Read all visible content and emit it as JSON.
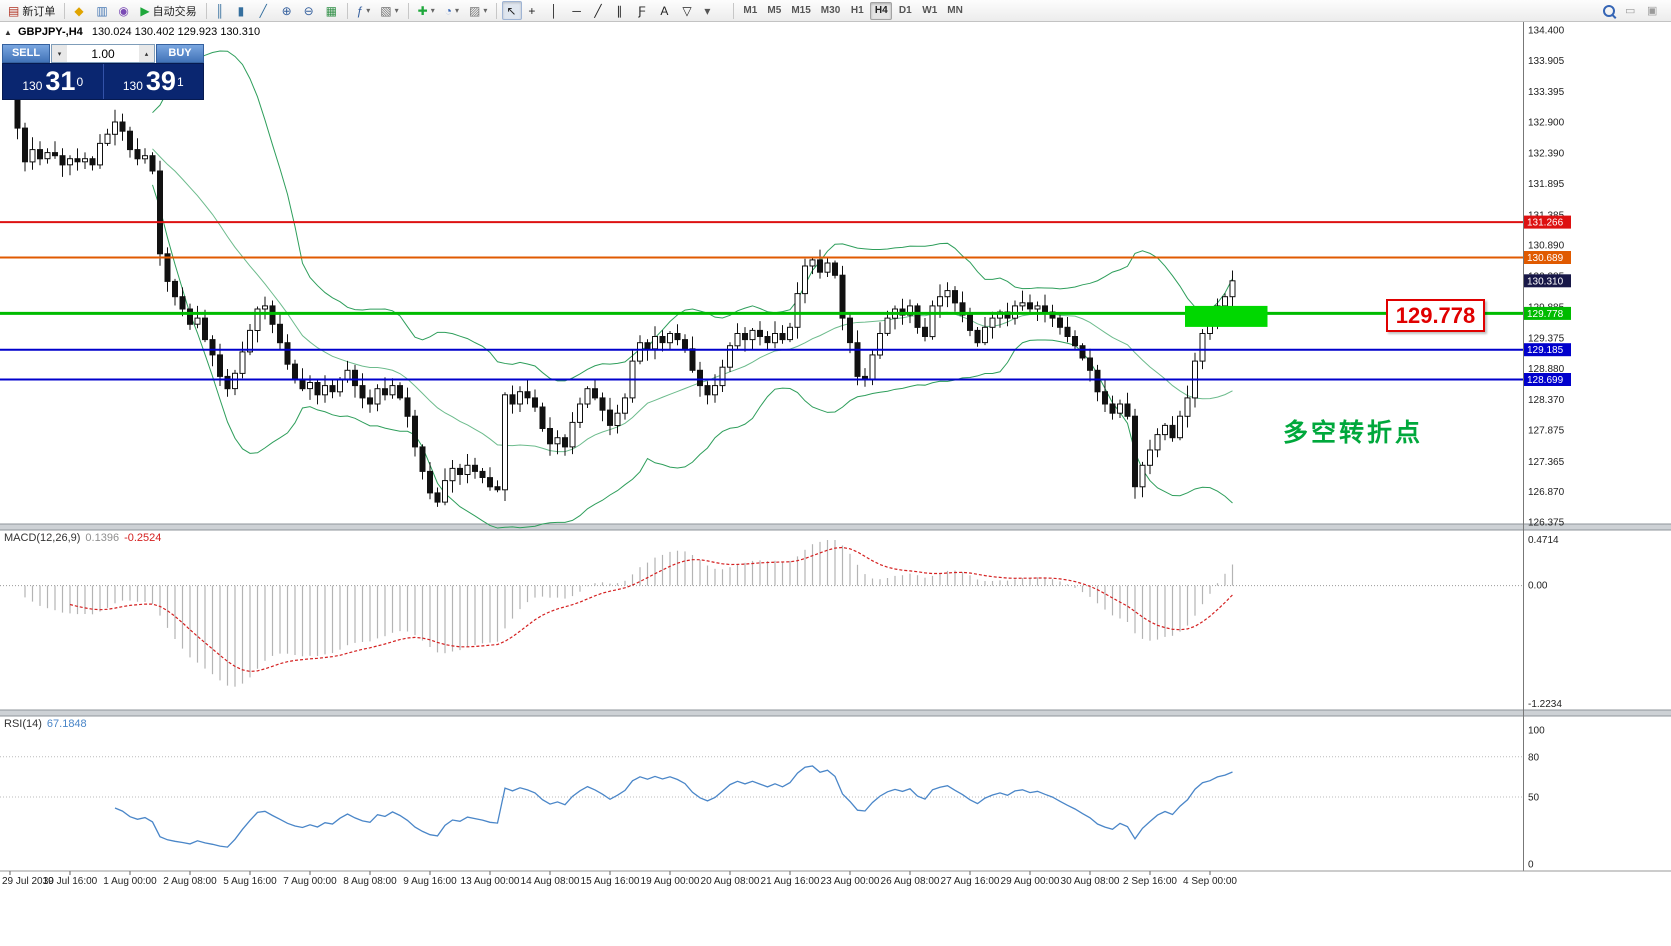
{
  "icons": {
    "collapse": "▲",
    "spin_up": "▴",
    "spin_down": "▾"
  },
  "quote_header": {
    "symbol_period": "GBPJPY-,H4",
    "ohlc": "130.024 130.402 129.923 130.310"
  },
  "one_click": {
    "sell_label": "SELL",
    "buy_label": "BUY",
    "volume": "1.00",
    "sell_prefix": "130",
    "sell_big": "31",
    "sell_sup": "0",
    "buy_prefix": "130",
    "buy_big": "39",
    "buy_sup": "1"
  },
  "toolbar": {
    "groups": [
      {
        "items": [
          {
            "name": "new-order-button",
            "glyph": "▤",
            "glyph_color": "#b03020",
            "label": "新订单"
          }
        ]
      },
      {
        "items": [
          {
            "name": "mql5-market-button",
            "glyph": "◆",
            "glyph_color": "#e0a400"
          },
          {
            "name": "chart-window-button",
            "glyph": "▥",
            "glyph_color": "#4a7ab5"
          },
          {
            "name": "community-button",
            "glyph": "◉",
            "glyph_color": "#7a4ab5"
          },
          {
            "name": "autotrading-button",
            "glyph": "▶",
            "glyph_color": "#1fa83c",
            "label": "自动交易"
          }
        ]
      },
      {
        "items": [
          {
            "name": "bar-chart-button",
            "glyph": "║",
            "glyph_color": "#356f9e"
          },
          {
            "name": "candlestick-chart-button",
            "glyph": "▮",
            "glyph_color": "#356f9e"
          },
          {
            "name": "line-chart-button",
            "glyph": "╱",
            "glyph_color": "#356f9e"
          },
          {
            "name": "zoom-in-button",
            "glyph": "⊕",
            "glyph_color": "#35609e"
          },
          {
            "name": "zoom-out-button",
            "glyph": "⊖",
            "glyph_color": "#35609e"
          },
          {
            "name": "tile-windows-button",
            "glyph": "▦",
            "glyph_color": "#2f8f46"
          }
        ]
      },
      {
        "items": [
          {
            "name": "indicator-list-button",
            "glyph": "ƒ",
            "glyph_color": "#355f9e",
            "dropdown": true
          },
          {
            "name": "objects-list-button",
            "glyph": "▧",
            "glyph_color": "#6f6f6f",
            "dropdown": true
          }
        ]
      },
      {
        "items": [
          {
            "name": "add-indicator-button",
            "glyph": "✚",
            "glyph_color": "#1fa83c",
            "dropdown": true
          },
          {
            "name": "period-selector-button",
            "glyph": "◔",
            "glyph_color": "#3565b5",
            "dropdown": true
          },
          {
            "name": "template-button",
            "glyph": "▨",
            "glyph_color": "#777777",
            "dropdown": true
          }
        ]
      },
      {
        "items": [
          {
            "name": "cursor-button",
            "glyph": "↖",
            "glyph_color": "#222222",
            "active": true
          },
          {
            "name": "crosshair-button",
            "glyph": "+",
            "glyph_color": "#222222"
          },
          {
            "name": "vertical-line-button",
            "glyph": "│",
            "glyph_color": "#222222"
          },
          {
            "name": "horizontal-line-button",
            "glyph": "─",
            "glyph_color": "#222222"
          },
          {
            "name": "trendline-button",
            "glyph": "╱",
            "glyph_color": "#222222"
          },
          {
            "name": "channel-button",
            "glyph": "∥",
            "glyph_color": "#222222"
          },
          {
            "name": "fibonacci-button",
            "glyph": "Ƒ",
            "glyph_color": "#222222"
          },
          {
            "name": "text-button",
            "glyph": "A",
            "glyph_color": "#222222"
          },
          {
            "name": "arrows-button",
            "glyph": "▽",
            "glyph_color": "#222222"
          },
          {
            "name": "shapes-dropdown-button",
            "glyph": "▾",
            "glyph_color": "#555555"
          }
        ]
      }
    ],
    "timeframes": [
      "M1",
      "M5",
      "M15",
      "M30",
      "H1",
      "H4",
      "D1",
      "W1",
      "MN"
    ],
    "active_timeframe": "H4",
    "right_buttons": [
      {
        "name": "search-button",
        "glyph": "search"
      },
      {
        "name": "window-minimize-button",
        "glyph": "▭"
      },
      {
        "name": "window-restore-button",
        "glyph": "▣"
      }
    ]
  },
  "macd": {
    "label": "MACD(12,26,9)",
    "value_main": "0.1396",
    "value_signal": "-0.2524"
  },
  "rsi": {
    "label": "RSI(14)",
    "value": "67.1848"
  },
  "annotations": {
    "callout_text": "129.778",
    "note_text": "多空转折点",
    "highlight_box": {
      "price": 129.778,
      "start_index": 157,
      "end_index": 168
    }
  },
  "chart_data": {
    "type": "candlestick",
    "symbol": "GBPJPY-",
    "period": "H4",
    "current": {
      "open": 130.024,
      "high": 130.402,
      "low": 129.923,
      "close": 130.31
    },
    "first_open": 133.55,
    "closes": [
      133.35,
      132.8,
      132.25,
      132.45,
      132.3,
      132.4,
      132.35,
      132.2,
      132.3,
      132.25,
      132.3,
      132.2,
      132.55,
      132.7,
      132.9,
      132.75,
      132.45,
      132.3,
      132.35,
      132.1,
      130.75,
      130.3,
      130.05,
      129.85,
      129.6,
      129.7,
      129.35,
      129.1,
      128.75,
      128.55,
      128.8,
      129.15,
      129.5,
      129.85,
      129.9,
      129.6,
      129.3,
      128.95,
      128.7,
      128.55,
      128.65,
      128.45,
      128.6,
      128.5,
      128.7,
      128.85,
      128.6,
      128.4,
      128.3,
      128.55,
      128.45,
      128.6,
      128.4,
      128.1,
      127.6,
      127.2,
      126.85,
      126.7,
      127.05,
      127.25,
      127.15,
      127.3,
      127.2,
      127.1,
      126.95,
      126.9,
      128.45,
      128.3,
      128.5,
      128.4,
      128.25,
      127.9,
      127.65,
      127.75,
      127.6,
      128.0,
      128.3,
      128.55,
      128.4,
      128.2,
      127.95,
      128.15,
      128.4,
      129.0,
      129.3,
      129.2,
      129.4,
      129.3,
      129.45,
      129.35,
      129.2,
      128.85,
      128.6,
      128.45,
      128.6,
      128.9,
      129.25,
      129.45,
      129.35,
      129.5,
      129.4,
      129.3,
      129.45,
      129.35,
      129.55,
      130.1,
      130.55,
      130.65,
      130.45,
      130.6,
      130.4,
      129.7,
      129.3,
      128.75,
      128.7,
      129.1,
      129.45,
      129.7,
      129.85,
      129.75,
      129.9,
      129.55,
      129.4,
      129.9,
      130.05,
      130.15,
      129.95,
      129.75,
      129.5,
      129.3,
      129.55,
      129.7,
      129.8,
      129.7,
      129.9,
      129.95,
      129.85,
      129.9,
      129.8,
      129.7,
      129.55,
      129.4,
      129.25,
      129.05,
      128.85,
      128.5,
      128.3,
      128.15,
      128.3,
      128.1,
      126.95,
      127.3,
      127.55,
      127.8,
      127.95,
      127.75,
      128.1,
      128.4,
      129.0,
      129.45,
      129.6,
      129.9,
      130.05,
      130.31
    ],
    "price_range": {
      "max": 134.4,
      "min": 126.375
    },
    "price_labels": [
      "134.400",
      "133.905",
      "133.395",
      "132.900",
      "132.390",
      "131.895",
      "131.385",
      "130.890",
      "130.385",
      "129.885",
      "129.375",
      "128.880",
      "128.370",
      "127.875",
      "127.365",
      "126.870",
      "126.375"
    ],
    "time_labels": [
      "29 Jul 2019",
      "30 Jul 16:00",
      "1 Aug 00:00",
      "2 Aug 08:00",
      "5 Aug 16:00",
      "7 Aug 00:00",
      "8 Aug 08:00",
      "9 Aug 16:00",
      "13 Aug 00:00",
      "14 Aug 08:00",
      "15 Aug 16:00",
      "19 Aug 00:00",
      "20 Aug 08:00",
      "21 Aug 16:00",
      "23 Aug 00:00",
      "26 Aug 08:00",
      "27 Aug 16:00",
      "29 Aug 00:00",
      "30 Aug 08:00",
      "2 Sep 16:00",
      "4 Sep 00:00"
    ],
    "levels": [
      {
        "price": 131.266,
        "label": "131.266",
        "color": "#dd1111",
        "width": 2
      },
      {
        "price": 130.689,
        "label": "130.689",
        "color": "#e05a00",
        "width": 2
      },
      {
        "price": 129.778,
        "label": "129.778",
        "color": "#00bb00",
        "width": 3
      },
      {
        "price": 129.185,
        "label": "129.185",
        "color": "#0000cc",
        "width": 2
      },
      {
        "price": 128.699,
        "label": "128.699",
        "color": "#0000cc",
        "width": 2
      }
    ],
    "current_price_tag": {
      "price": 130.31,
      "label": "130.310",
      "bg": "#181848"
    },
    "indicators": {
      "bollinger": {
        "period": 20,
        "deviation": 2,
        "color": "#2e9e5b"
      },
      "macd": {
        "fast": 12,
        "slow": 26,
        "signal": 9,
        "hist_color": "#b4b4b4",
        "signal_color": "#d42020",
        "axis_max": 0.4714,
        "axis_min": -1.2234,
        "axis_labels": [
          "0.4714",
          "0.00",
          "-1.2234"
        ]
      },
      "rsi": {
        "period": 14,
        "color": "#4a86c8",
        "axis_labels": [
          {
            "v": 100,
            "t": "100"
          },
          {
            "v": 80,
            "t": "80"
          },
          {
            "v": 50,
            "t": "50"
          },
          {
            "v": 0,
            "t": "0"
          }
        ],
        "levels": [
          80,
          50
        ]
      }
    },
    "colors": {
      "candle_up": "#ffffff",
      "candle_down": "#111111",
      "candle_line": "#111111",
      "highlight_box": "#00d800"
    }
  }
}
